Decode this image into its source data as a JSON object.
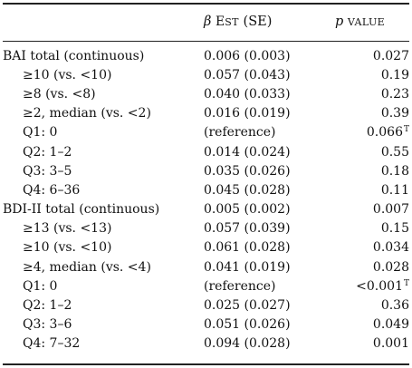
{
  "header": {
    "beta_symbol": "β",
    "est_first": "E",
    "est_rest": "ST",
    "se": "(SE)",
    "p_symbol": "p",
    "value_label": "VALUE"
  },
  "rows": [
    {
      "label": "BAI total (continuous)",
      "indent": false,
      "est": "0.006 (0.003)",
      "p": "0.027",
      "note": ""
    },
    {
      "label": "≥10 (vs. <10)",
      "indent": true,
      "est": "0.057 (0.043)",
      "p": "0.19",
      "note": ""
    },
    {
      "label": "≥8 (vs. <8)",
      "indent": true,
      "est": "0.040 (0.033)",
      "p": "0.23",
      "note": ""
    },
    {
      "label": "≥2, median (vs. <2)",
      "indent": true,
      "est": "0.016 (0.019)",
      "p": "0.39",
      "note": ""
    },
    {
      "label": "Q1: 0",
      "indent": true,
      "est": "(reference)",
      "p": "0.066",
      "note": "T"
    },
    {
      "label": "Q2: 1–2",
      "indent": true,
      "est": "0.014 (0.024)",
      "p": "0.55",
      "note": ""
    },
    {
      "label": "Q3: 3–5",
      "indent": true,
      "est": "0.035 (0.026)",
      "p": "0.18",
      "note": ""
    },
    {
      "label": "Q4: 6–36",
      "indent": true,
      "est": "0.045 (0.028)",
      "p": "0.11",
      "note": ""
    },
    {
      "label": "BDI-II total (continuous)",
      "indent": false,
      "est": "0.005 (0.002)",
      "p": "0.007",
      "note": ""
    },
    {
      "label": "≥13 (vs. <13)",
      "indent": true,
      "est": "0.057 (0.039)",
      "p": "0.15",
      "note": ""
    },
    {
      "label": "≥10 (vs. <10)",
      "indent": true,
      "est": "0.061 (0.028)",
      "p": "0.034",
      "note": ""
    },
    {
      "label": "≥4, median (vs. <4)",
      "indent": true,
      "est": "0.041 (0.019)",
      "p": "0.028",
      "note": ""
    },
    {
      "label": "Q1: 0",
      "indent": true,
      "est": "(reference)",
      "p": "<0.001",
      "note": "T"
    },
    {
      "label": "Q2: 1–2",
      "indent": true,
      "est": "0.025 (0.027)",
      "p": "0.36",
      "note": ""
    },
    {
      "label": "Q3: 3–6",
      "indent": true,
      "est": "0.051 (0.026)",
      "p": "0.049",
      "note": ""
    },
    {
      "label": "Q4: 7–32",
      "indent": true,
      "est": "0.094 (0.028)",
      "p": "0.001",
      "note": ""
    }
  ]
}
